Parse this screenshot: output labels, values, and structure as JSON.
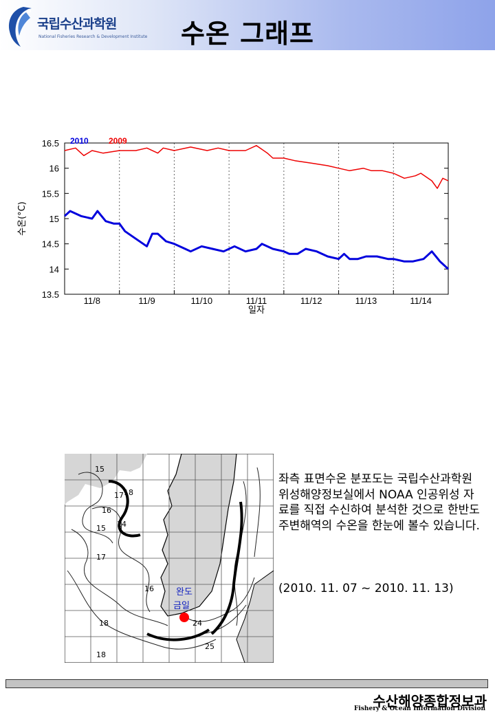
{
  "header": {
    "logo_name": "국립수산과학원",
    "logo_sub": "National Fisheries Research & Development Institute",
    "title": "수온 그래프"
  },
  "chart_data": {
    "type": "line",
    "title": "",
    "xlabel": "일자",
    "ylabel": "수온(°C)",
    "ylim": [
      13.5,
      16.5
    ],
    "yticks": [
      13.5,
      14,
      14.5,
      15,
      15.5,
      16,
      16.5
    ],
    "xlim": [
      0,
      7
    ],
    "categories": [
      "11/8",
      "11/9",
      "11/10",
      "11/11",
      "11/12",
      "11/13",
      "11/14"
    ],
    "grid": "vertical dotted",
    "legend": "top-left",
    "series": [
      {
        "name": "2010",
        "color": "#0000dd",
        "x": [
          0,
          0.1,
          0.3,
          0.5,
          0.6,
          0.75,
          0.9,
          1.0,
          1.1,
          1.3,
          1.5,
          1.6,
          1.7,
          1.85,
          2.0,
          2.2,
          2.3,
          2.5,
          2.7,
          2.9,
          3.1,
          3.3,
          3.5,
          3.6,
          3.8,
          4.0,
          4.1,
          4.25,
          4.4,
          4.6,
          4.8,
          5.0,
          5.1,
          5.2,
          5.35,
          5.5,
          5.7,
          5.9,
          6.0,
          6.2,
          6.35,
          6.55,
          6.7,
          6.85,
          7.0
        ],
        "values": [
          15.05,
          15.15,
          15.05,
          15.0,
          15.15,
          14.95,
          14.9,
          14.9,
          14.75,
          14.6,
          14.45,
          14.7,
          14.7,
          14.55,
          14.5,
          14.4,
          14.35,
          14.45,
          14.4,
          14.35,
          14.45,
          14.35,
          14.4,
          14.5,
          14.4,
          14.35,
          14.3,
          14.3,
          14.4,
          14.35,
          14.25,
          14.2,
          14.3,
          14.2,
          14.2,
          14.25,
          14.25,
          14.2,
          14.2,
          14.15,
          14.15,
          14.2,
          14.35,
          14.15,
          14.0
        ]
      },
      {
        "name": "2009",
        "color": "#ee0000",
        "x": [
          0,
          0.2,
          0.35,
          0.5,
          0.7,
          1.0,
          1.3,
          1.5,
          1.7,
          1.8,
          2.0,
          2.3,
          2.6,
          2.8,
          3.0,
          3.3,
          3.5,
          3.7,
          3.8,
          4.0,
          4.2,
          4.5,
          4.8,
          5.0,
          5.2,
          5.45,
          5.6,
          5.8,
          6.0,
          6.2,
          6.4,
          6.5,
          6.7,
          6.8,
          6.9,
          7.0
        ],
        "values": [
          16.35,
          16.4,
          16.25,
          16.35,
          16.3,
          16.35,
          16.35,
          16.4,
          16.3,
          16.4,
          16.35,
          16.42,
          16.35,
          16.4,
          16.35,
          16.35,
          16.45,
          16.3,
          16.2,
          16.2,
          16.15,
          16.1,
          16.05,
          16.0,
          15.95,
          16.0,
          15.95,
          15.95,
          15.9,
          15.8,
          15.85,
          15.9,
          15.75,
          15.6,
          15.8,
          15.75
        ]
      }
    ]
  },
  "map": {
    "labels": {
      "wando": "완도",
      "gumil": "금일",
      "iso_15a": "15",
      "iso_17": "17",
      "iso_18a": "18",
      "iso_16a": "16",
      "iso_15b": "15",
      "iso_14": "14",
      "iso_17b": "17",
      "iso_16b": "16",
      "iso_18b": "18",
      "iso_18c": "18",
      "iso_24": "24",
      "iso_25": "25"
    }
  },
  "description": {
    "body": "좌측 표면수온 분포도는 국립수산과학원 위성해양정보실에서 NOAA 인공위성 자료를 직접 수신하여 분석한 것으로 한반도 주변해역의 수온을 한눈에 볼수 있습니다.",
    "period": "(2010. 11. 07 ~ 2010. 11. 13)"
  },
  "footer": {
    "title_kr": "수산해양종합정보과",
    "title_en": "Fishery & Ocean Information Division"
  }
}
